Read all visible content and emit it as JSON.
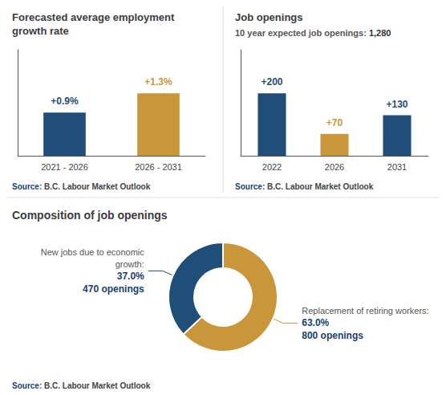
{
  "chart_data": [
    {
      "type": "bar",
      "title": "Forecasted average employment\ngrowth rate",
      "categories": [
        "2021 - 2026",
        "2026 - 2031"
      ],
      "values": [
        0.9,
        1.3
      ],
      "value_labels": [
        "+0.9%",
        "+1.3%"
      ],
      "colors": [
        "#1f4e79",
        "#c9973a"
      ],
      "ylim": [
        0,
        2.21
      ],
      "tick_labels": "x",
      "grid": false,
      "data_labels": true,
      "annotations": [
        "Source: B.C. Labour Market Outlook"
      ]
    },
    {
      "type": "bar",
      "title": "Job openings",
      "subtitle": "10 year expected job openings: 1,280",
      "categories": [
        "2022",
        "2026",
        "2031"
      ],
      "values": [
        200,
        70,
        130
      ],
      "value_labels": [
        "+200",
        "+70",
        "+130"
      ],
      "colors": [
        "#1f4e79",
        "#c9973a",
        "#1f4e79"
      ],
      "ylim": [
        0,
        340
      ],
      "tick_labels": "x",
      "grid": false,
      "data_labels": true,
      "annotations": [
        "Source: B.C. Labour Market Outlook"
      ]
    },
    {
      "type": "pie",
      "title": "Composition of job openings",
      "categories": [
        "Replacement of retiring workers:",
        "New jobs due to economic\ngrowth:"
      ],
      "values": [
        63.0,
        37.0
      ],
      "value_labels": [
        "63.0%",
        "37.0%"
      ],
      "slice_notes": [
        "800 openings",
        "470 openings"
      ],
      "colors": [
        "#c9973a",
        "#1f4e79"
      ],
      "data_labels": true,
      "annotations": [
        "Source: B.C. Labour Market Outlook"
      ]
    }
  ]
}
